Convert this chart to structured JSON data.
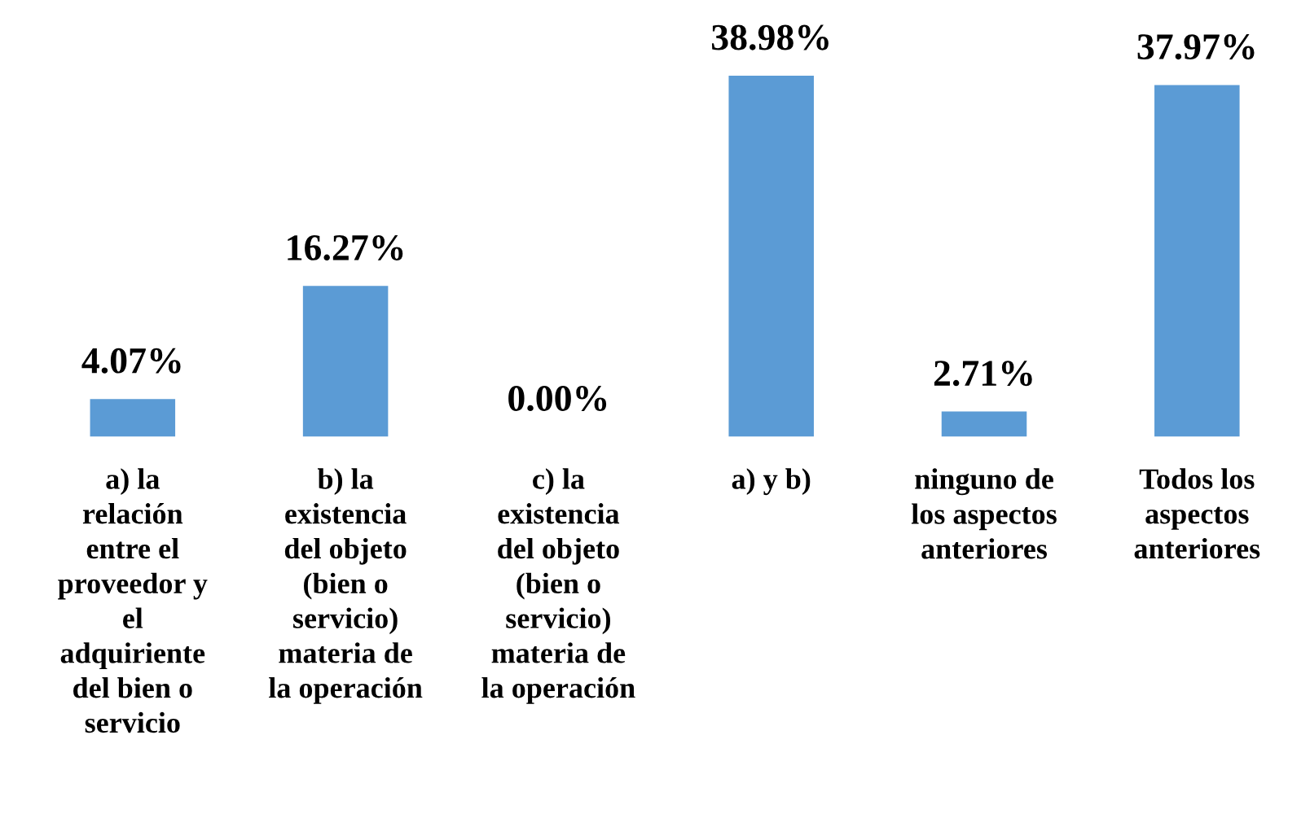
{
  "chart_data": {
    "type": "bar",
    "categories": [
      "a) la\nrelación\nentre el\nproveedor y\nel\nadquiriente\ndel bien o\nservicio",
      "b) la\nexistencia\ndel objeto\n(bien o\nservicio)\nmateria de\nla operación",
      "c) la\nexistencia\ndel objeto\n(bien o\nservicio)\nmateria de\nla operación",
      "a) y b)",
      "ninguno de\nlos aspectos\nanteriores",
      "Todos los\naspectos\nanteriores"
    ],
    "values": [
      4.07,
      16.27,
      0.0,
      38.98,
      2.71,
      37.97
    ],
    "value_labels": [
      "4.07%",
      "16.27%",
      "0.00%",
      "38.98%",
      "2.71%",
      "37.97%"
    ],
    "color": "#5b9bd5"
  }
}
